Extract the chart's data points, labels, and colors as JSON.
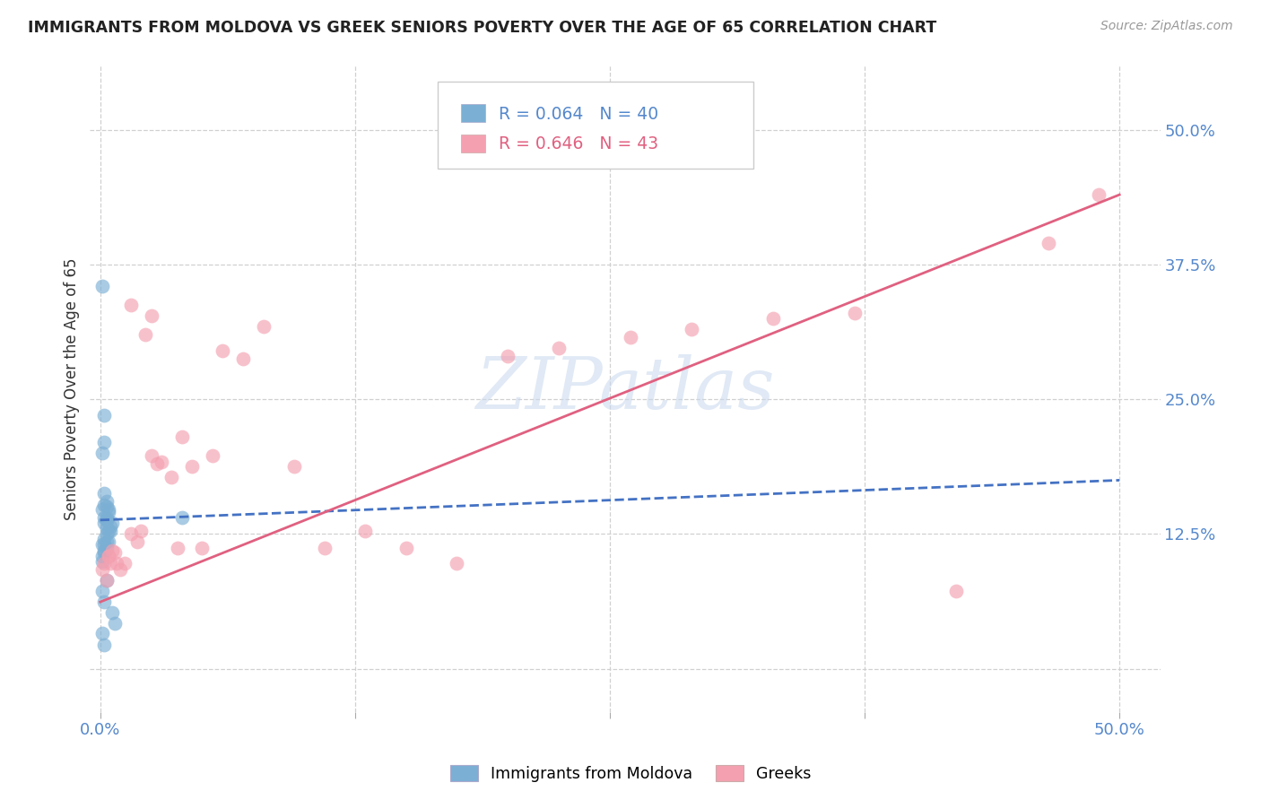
{
  "title": "IMMIGRANTS FROM MOLDOVA VS GREEK SENIORS POVERTY OVER THE AGE OF 65 CORRELATION CHART",
  "source": "Source: ZipAtlas.com",
  "ylabel": "Seniors Poverty Over the Age of 65",
  "background_color": "#ffffff",
  "watermark_text": "ZIPatlas",
  "legend1_label": "Immigrants from Moldova",
  "legend2_label": "Greeks",
  "R1": "0.064",
  "N1": "40",
  "R2": "0.646",
  "N2": "43",
  "blue_scatter_color": "#7BAFD4",
  "pink_scatter_color": "#F4A0B0",
  "blue_line_color": "#4472C4",
  "pink_line_color": "#E06080",
  "grid_color": "#D0D0D0",
  "xlim": [
    -0.005,
    0.52
  ],
  "ylim": [
    -0.04,
    0.56
  ],
  "ytick_pos": [
    0.0,
    0.125,
    0.25,
    0.375,
    0.5
  ],
  "ytick_labels": [
    "",
    "12.5%",
    "25.0%",
    "37.5%",
    "50.0%"
  ],
  "xtick_pos": [
    0.0,
    0.125,
    0.25,
    0.375,
    0.5
  ],
  "xtick_labels": [
    "0.0%",
    "",
    "",
    "",
    "50.0%"
  ],
  "moldova_x": [
    0.001,
    0.002,
    0.001,
    0.002,
    0.001,
    0.003,
    0.002,
    0.001,
    0.002,
    0.003,
    0.002,
    0.001,
    0.003,
    0.002,
    0.001,
    0.002,
    0.003,
    0.004,
    0.003,
    0.002,
    0.004,
    0.003,
    0.005,
    0.004,
    0.003,
    0.002,
    0.006,
    0.005,
    0.004,
    0.003,
    0.007,
    0.006,
    0.002,
    0.001,
    0.003,
    0.002,
    0.001,
    0.04,
    0.002,
    0.003
  ],
  "moldova_y": [
    0.115,
    0.11,
    0.355,
    0.12,
    0.105,
    0.125,
    0.115,
    0.1,
    0.108,
    0.118,
    0.135,
    0.148,
    0.155,
    0.163,
    0.2,
    0.21,
    0.13,
    0.128,
    0.138,
    0.235,
    0.148,
    0.14,
    0.132,
    0.145,
    0.138,
    0.152,
    0.135,
    0.128,
    0.118,
    0.112,
    0.042,
    0.052,
    0.062,
    0.033,
    0.082,
    0.14,
    0.072,
    0.14,
    0.022,
    0.15
  ],
  "greeks_x": [
    0.001,
    0.002,
    0.003,
    0.004,
    0.005,
    0.006,
    0.004,
    0.008,
    0.007,
    0.01,
    0.012,
    0.015,
    0.018,
    0.02,
    0.022,
    0.025,
    0.03,
    0.028,
    0.035,
    0.038,
    0.04,
    0.045,
    0.05,
    0.055,
    0.06,
    0.07,
    0.08,
    0.095,
    0.11,
    0.13,
    0.15,
    0.175,
    0.2,
    0.225,
    0.26,
    0.29,
    0.33,
    0.37,
    0.42,
    0.465,
    0.015,
    0.025,
    0.49
  ],
  "greeks_y": [
    0.092,
    0.098,
    0.082,
    0.105,
    0.098,
    0.11,
    0.105,
    0.098,
    0.108,
    0.092,
    0.098,
    0.125,
    0.118,
    0.128,
    0.31,
    0.198,
    0.192,
    0.19,
    0.178,
    0.112,
    0.215,
    0.188,
    0.112,
    0.198,
    0.295,
    0.288,
    0.318,
    0.188,
    0.112,
    0.128,
    0.112,
    0.098,
    0.29,
    0.298,
    0.308,
    0.315,
    0.325,
    0.33,
    0.072,
    0.395,
    0.338,
    0.328,
    0.44
  ],
  "moldova_line_x": [
    0.0,
    0.5
  ],
  "moldova_line_y": [
    0.138,
    0.175
  ],
  "greeks_line_x": [
    0.0,
    0.5
  ],
  "greeks_line_y": [
    0.062,
    0.44
  ]
}
